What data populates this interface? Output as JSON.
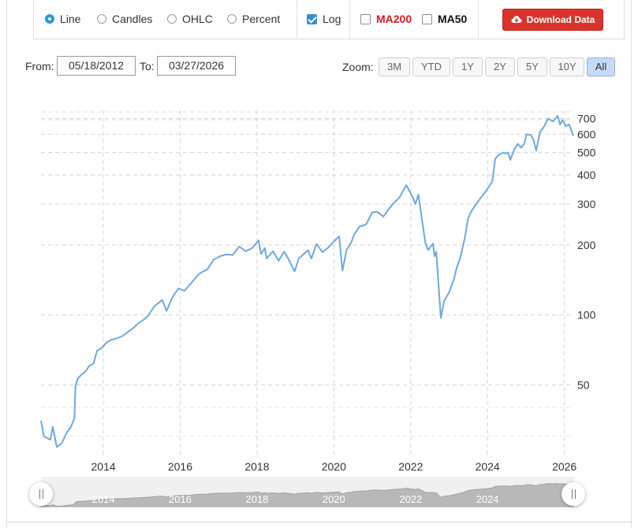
{
  "toolbar": {
    "chart_types": [
      {
        "label": "Line",
        "selected": true
      },
      {
        "label": "Candles",
        "selected": false
      },
      {
        "label": "OHLC",
        "selected": false
      },
      {
        "label": "Percent",
        "selected": false
      }
    ],
    "log": {
      "label": "Log",
      "checked": true
    },
    "ma200": {
      "label": "MA200",
      "checked": false,
      "color": "#d81b1b"
    },
    "ma50": {
      "label": "MA50",
      "checked": false
    },
    "download_label": "Download Data",
    "download_color": "#d9342b"
  },
  "range": {
    "from_label": "From:",
    "from_value": "05/18/2012",
    "to_label": "To:",
    "to_value": "03/27/2026"
  },
  "zoom": {
    "label": "Zoom:",
    "options": [
      "3M",
      "YTD",
      "1Y",
      "2Y",
      "5Y",
      "10Y",
      "All"
    ],
    "active": "All"
  },
  "chart_data": {
    "type": "line",
    "title": "",
    "xlabel": "",
    "ylabel": "",
    "y_scale": "log",
    "grid": true,
    "line_color": "#6fa8dc",
    "x_range": [
      "2012-05-18",
      "2026-03-27"
    ],
    "ylim": [
      25,
      760
    ],
    "y_ticks": [
      50,
      100,
      200,
      300,
      400,
      500,
      600,
      700
    ],
    "x_ticks": [
      "2014",
      "2016",
      "2018",
      "2020",
      "2022",
      "2024",
      "2026"
    ],
    "series": [
      {
        "x": [
          "2012-05-18",
          "2012-06-15",
          "2012-08-15",
          "2012-09-07",
          "2012-10-15",
          "2012-12-01",
          "2013-01-15",
          "2013-02-28",
          "2013-04-01",
          "2013-04-10",
          "2013-05-01",
          "2013-06-01",
          "2013-07-15",
          "2013-08-15",
          "2013-10-01",
          "2013-11-01",
          "2013-12-15",
          "2014-02-01",
          "2014-03-15",
          "2014-04-30",
          "2014-07-01",
          "2014-08-15",
          "2014-10-15",
          "2014-11-30",
          "2015-01-15",
          "2015-03-01",
          "2015-05-01",
          "2015-07-15",
          "2015-08-25",
          "2015-10-15",
          "2015-12-15",
          "2016-02-10",
          "2016-04-15",
          "2016-06-15",
          "2016-07-15",
          "2016-09-15",
          "2016-11-15",
          "2017-01-15",
          "2017-03-15",
          "2017-05-15",
          "2017-07-15",
          "2017-09-15",
          "2017-11-15",
          "2018-01-15",
          "2018-02-08",
          "2018-03-15",
          "2018-04-01",
          "2018-06-01",
          "2018-07-25",
          "2018-09-15",
          "2018-10-15",
          "2018-12-24",
          "2019-02-01",
          "2019-04-30",
          "2019-06-01",
          "2019-07-20",
          "2019-09-15",
          "2019-11-15",
          "2020-01-15",
          "2020-02-20",
          "2020-03-23",
          "2020-05-01",
          "2020-06-15",
          "2020-07-15",
          "2020-09-01",
          "2020-11-01",
          "2020-12-31",
          "2021-02-15",
          "2021-04-15",
          "2021-06-01",
          "2021-07-15",
          "2021-09-15",
          "2021-11-20",
          "2021-12-15",
          "2022-01-15",
          "2022-02-15",
          "2022-03-15",
          "2022-05-20",
          "2022-06-15",
          "2022-08-01",
          "2022-08-15",
          "2022-09-01",
          "2022-10-14",
          "2022-11-15",
          "2023-01-01",
          "2023-02-15",
          "2023-03-15",
          "2023-04-15",
          "2023-05-31",
          "2023-06-30",
          "2023-08-01",
          "2023-09-15",
          "2023-10-31",
          "2023-12-15",
          "2024-02-15",
          "2024-03-15",
          "2024-04-19",
          "2024-05-31",
          "2024-06-20",
          "2024-07-15",
          "2024-08-05",
          "2024-09-15",
          "2024-10-15",
          "2024-11-15",
          "2024-12-15",
          "2025-01-06",
          "2025-02-15",
          "2025-03-15",
          "2025-04-08",
          "2025-05-15",
          "2025-06-15",
          "2025-07-31",
          "2025-09-15",
          "2025-10-29",
          "2025-11-20",
          "2025-12-15",
          "2026-01-15",
          "2026-02-15",
          "2026-03-27"
        ],
        "y": [
          35,
          30,
          29,
          33,
          27,
          28,
          31,
          33,
          36,
          49,
          53,
          55,
          57,
          60,
          62,
          70,
          72,
          76,
          78,
          79,
          81,
          84,
          88,
          92,
          95,
          99,
          109,
          116,
          104,
          118,
          130,
          127,
          137,
          148,
          152,
          157,
          173,
          179,
          182,
          181,
          197,
          188,
          194,
          209,
          183,
          194,
          175,
          188,
          171,
          187,
          178,
          154,
          175,
          190,
          175,
          202,
          186,
          196,
          210,
          218,
          155,
          190,
          205,
          223,
          240,
          245,
          276,
          278,
          265,
          283,
          300,
          320,
          362,
          345,
          325,
          300,
          330,
          205,
          190,
          203,
          179,
          187,
          97,
          115,
          125,
          142,
          160,
          175,
          215,
          260,
          280,
          300,
          320,
          340,
          375,
          470,
          490,
          500,
          495,
          500,
          465,
          520,
          545,
          525,
          545,
          600,
          595,
          565,
          510,
          615,
          640,
          700,
          680,
          720,
          660,
          690,
          650,
          660,
          590
        ]
      }
    ]
  }
}
